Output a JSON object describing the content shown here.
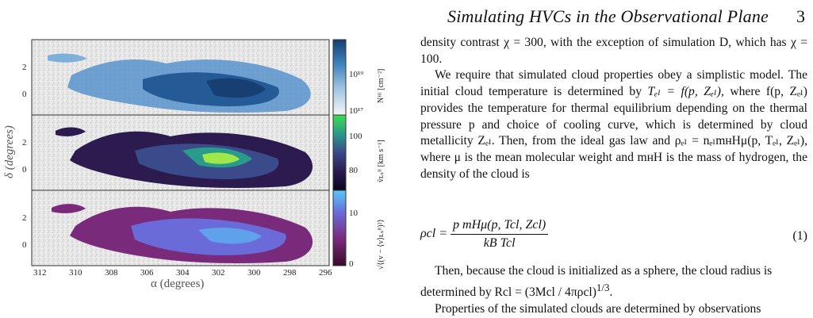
{
  "header": {
    "running_title": "Simulating HVCs in the Observational Plane",
    "page_number": "3"
  },
  "figure": {
    "panels": [
      {
        "id": "column-density",
        "colorbar_ticks": [
          "10¹⁹",
          "10¹⁷"
        ],
        "colorbar_label": "Nᴴᴵ [cm⁻²]"
      },
      {
        "id": "mean-velocity",
        "colorbar_ticks": [
          "100",
          "80"
        ],
        "colorbar_label": "v̄ʟₛᴿ [km s⁻¹]"
      },
      {
        "id": "velocity-dispersion",
        "colorbar_ticks": [
          "10",
          "0"
        ],
        "colorbar_label": "√⟨(v − ⟨v⟩ʟₛᴿ)²⟩"
      }
    ],
    "y_ticks": [
      "2",
      "0"
    ],
    "x_ticks": [
      "312",
      "310",
      "308",
      "306",
      "304",
      "302",
      "300",
      "298",
      "296"
    ],
    "x_label": "α (degrees)",
    "y_label": "δ (degrees)"
  },
  "text": {
    "p1": "density contrast χ = 300, with the exception of simulation D, which has χ = 100.",
    "p2a": "We require that simulated cloud properties obey a simplistic model. The initial cloud temperature is determined by ",
    "p2b": "Tₑₗ = f(p, Zₑₗ)",
    "p2c": ", where f(p, Zₑₗ) provides the temperature for thermal equilibrium depending on the thermal pressure p and choice of cooling curve, which is determined by cloud metallicity Zₑₗ. Then, from the ideal gas law and ρₑₗ = nₑₗmʜHμ(p, Tₑₗ, Zₑₗ), where μ is the mean molecular weight and mʜH is the mass of hydrogen, the density of the cloud is",
    "eq_lhs": "ρcl =",
    "eq_num": "p mHμ(p, Tcl, Zcl)",
    "eq_den": "kB Tcl",
    "eq_tag": "(1)",
    "p3a": "Then, because the cloud is initialized as a sphere, the cloud radius is determined by Rcl = (3Mcl / 4πρcl)",
    "p3b": "1/3",
    "p4": "Properties of the simulated clouds are determined by observations"
  }
}
